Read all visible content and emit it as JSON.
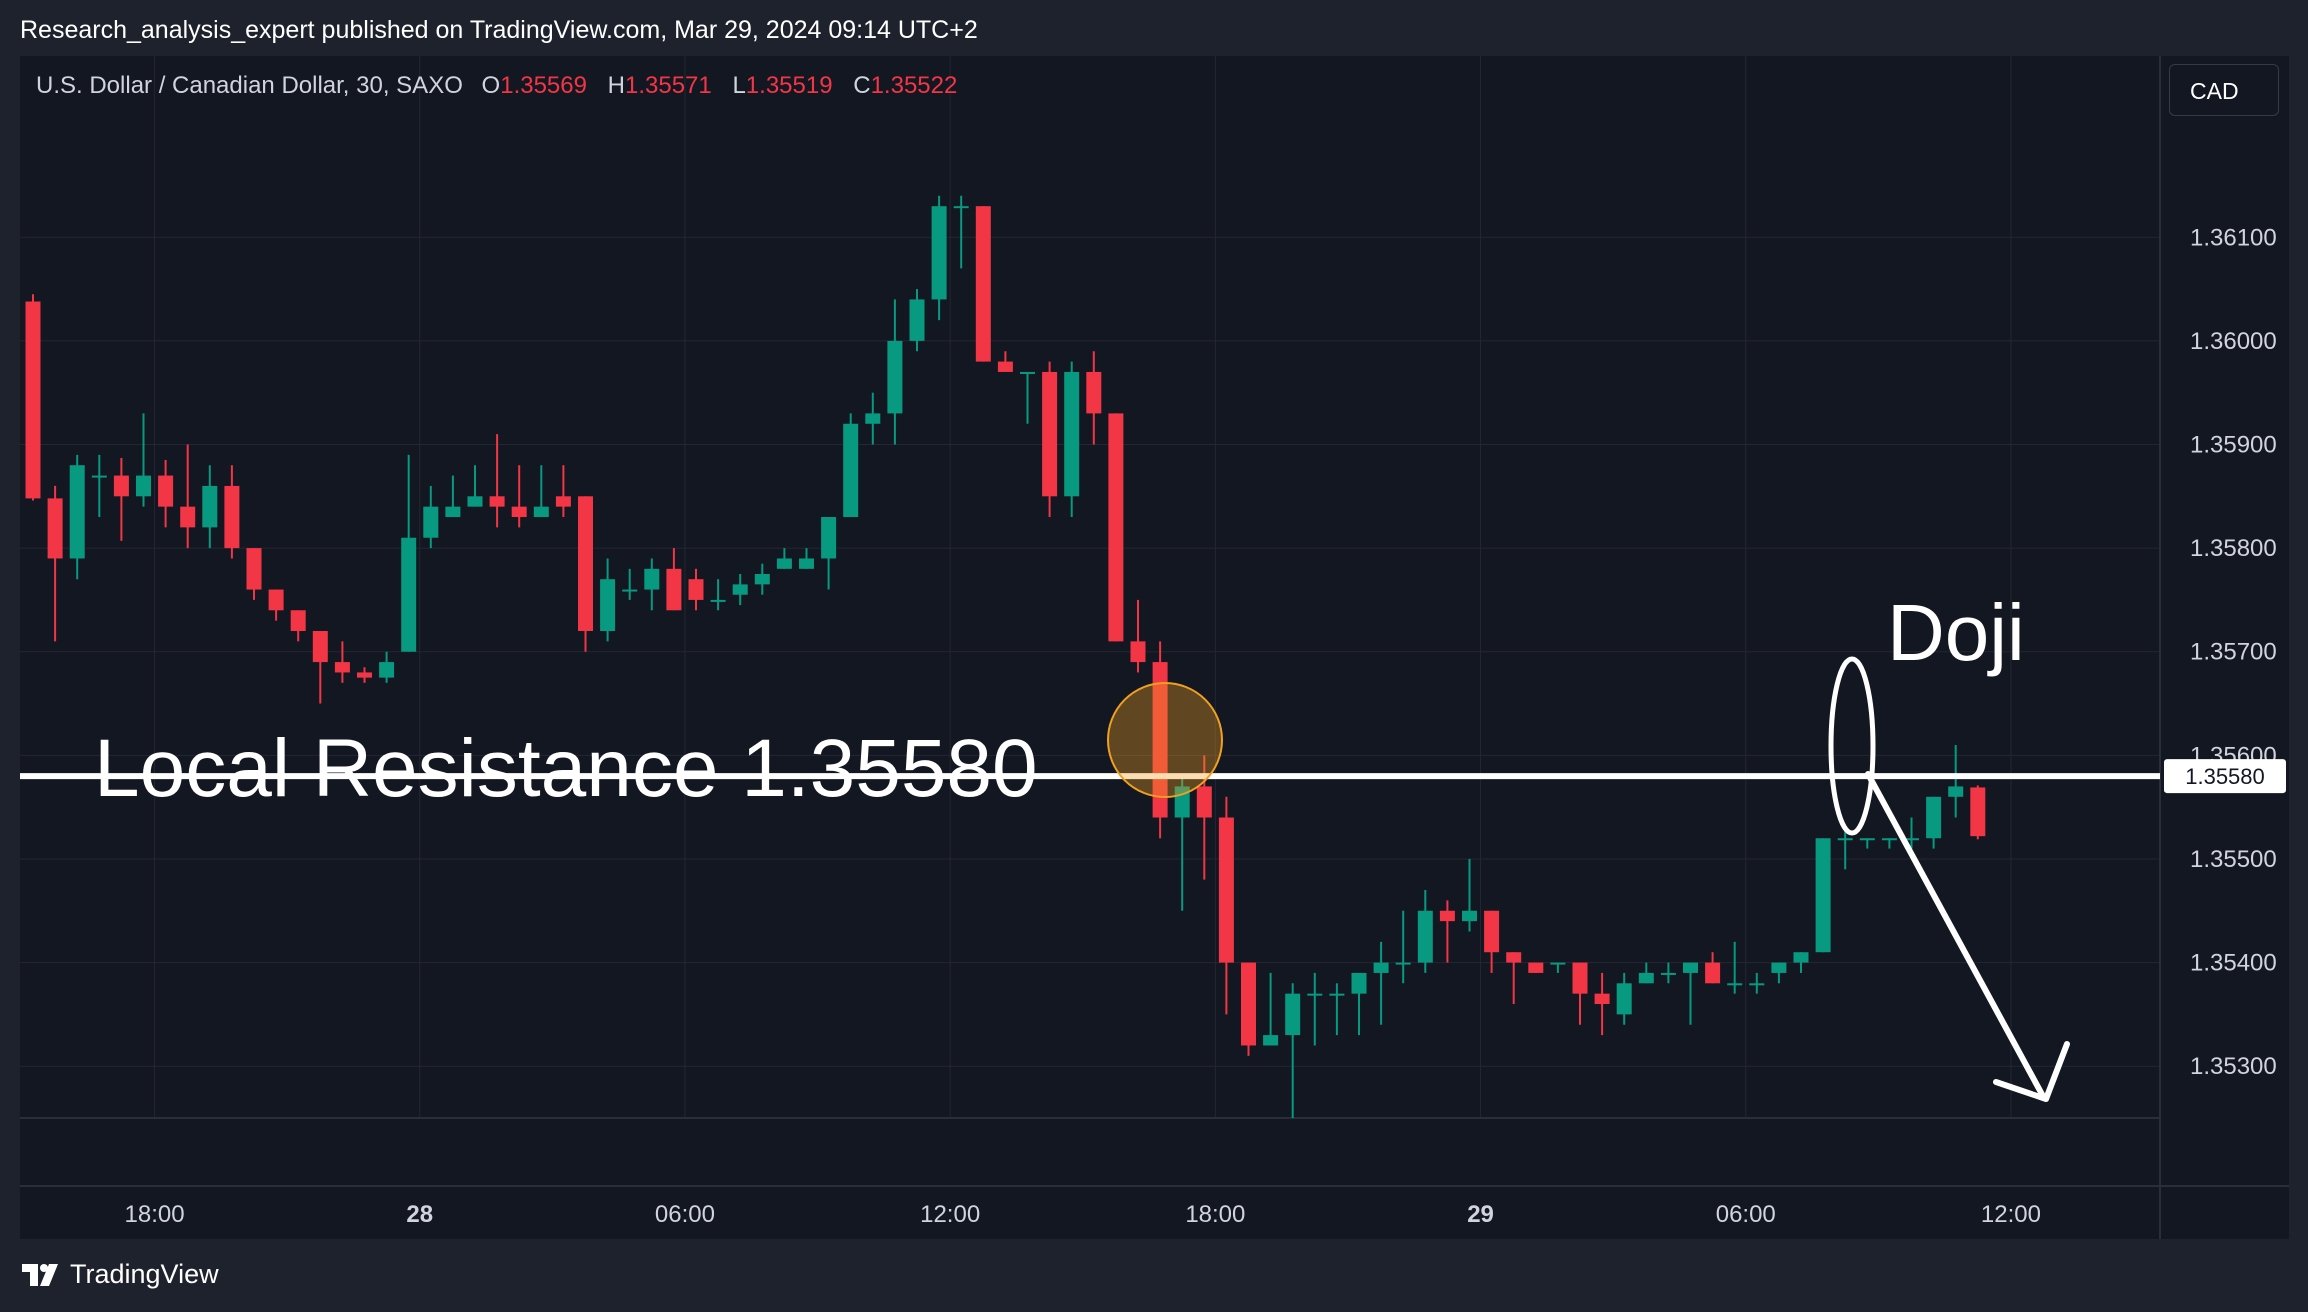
{
  "header": {
    "published": "Research_analysis_expert published on TradingView.com, Mar 29, 2024 09:14 UTC+2"
  },
  "symbol": {
    "name": "U.S. Dollar / Canadian Dollar, 30, SAXO",
    "o_label": "O",
    "o_value": "1.35569",
    "h_label": "H",
    "h_value": "1.35571",
    "l_label": "L",
    "l_value": "1.35519",
    "c_label": "C",
    "c_value": "1.35522"
  },
  "currency_button": "CAD",
  "annotations": {
    "resistance_label": "Local Resistance 1.35580",
    "doji_label": "Doji",
    "resistance_price_tag": "1.35580"
  },
  "footer": {
    "brand": "TradingView"
  },
  "colors": {
    "up": "#089981",
    "down": "#f23645",
    "background": "#131722",
    "grid": "#242733",
    "text": "#d1d4dc",
    "marker": "#f0a020"
  },
  "chart_data": {
    "type": "candlestick",
    "title": "U.S. Dollar / Canadian Dollar, 30, SAXO",
    "ylim": [
      1.3525,
      1.3619
    ],
    "y_ticks": [
      "1.36100",
      "1.36000",
      "1.35900",
      "1.35800",
      "1.35700",
      "1.35600",
      "1.35500",
      "1.35400",
      "1.35300"
    ],
    "x_ticks": [
      {
        "label": "18:00",
        "bold": false,
        "index": 5.5
      },
      {
        "label": "28",
        "bold": true,
        "index": 17.5
      },
      {
        "label": "06:00",
        "bold": false,
        "index": 29.5
      },
      {
        "label": "12:00",
        "bold": false,
        "index": 41.5
      },
      {
        "label": "18:00",
        "bold": false,
        "index": 53.5
      },
      {
        "label": "29",
        "bold": true,
        "index": 65.5
      },
      {
        "label": "06:00",
        "bold": false,
        "index": 77.5
      },
      {
        "label": "12:00",
        "bold": false,
        "index": 89.5
      }
    ],
    "resistance_level": 1.3558,
    "candles": [
      [
        1.36038,
        1.36045,
        1.35846,
        1.35848
      ],
      [
        1.35848,
        1.3586,
        1.3571,
        1.3579
      ],
      [
        1.3579,
        1.3589,
        1.3577,
        1.3588
      ],
      [
        1.3587,
        1.3589,
        1.3583,
        1.3587
      ],
      [
        1.3587,
        1.35887,
        1.35807,
        1.3585
      ],
      [
        1.3585,
        1.3593,
        1.3584,
        1.3587
      ],
      [
        1.3587,
        1.35885,
        1.3582,
        1.3584
      ],
      [
        1.3584,
        1.359,
        1.358,
        1.3582
      ],
      [
        1.3582,
        1.3588,
        1.358,
        1.3586
      ],
      [
        1.3586,
        1.3588,
        1.3579,
        1.358
      ],
      [
        1.358,
        1.358,
        1.3575,
        1.3576
      ],
      [
        1.3576,
        1.3576,
        1.3573,
        1.3574
      ],
      [
        1.3574,
        1.3574,
        1.3571,
        1.3572
      ],
      [
        1.3572,
        1.3572,
        1.3565,
        1.3569
      ],
      [
        1.3569,
        1.3571,
        1.3567,
        1.3568
      ],
      [
        1.3568,
        1.35685,
        1.3567,
        1.35675
      ],
      [
        1.35675,
        1.357,
        1.3567,
        1.3569
      ],
      [
        1.357,
        1.3589,
        1.357,
        1.3581
      ],
      [
        1.3581,
        1.3586,
        1.358,
        1.3584
      ],
      [
        1.3583,
        1.3587,
        1.3583,
        1.3584
      ],
      [
        1.3584,
        1.3588,
        1.3584,
        1.3585
      ],
      [
        1.3585,
        1.3591,
        1.3582,
        1.3584
      ],
      [
        1.3584,
        1.3588,
        1.3582,
        1.3583
      ],
      [
        1.3583,
        1.3588,
        1.3583,
        1.3584
      ],
      [
        1.3585,
        1.3588,
        1.3583,
        1.3584
      ],
      [
        1.3585,
        1.3585,
        1.357,
        1.3572
      ],
      [
        1.3572,
        1.3579,
        1.3571,
        1.3577
      ],
      [
        1.3576,
        1.3578,
        1.3575,
        1.3576
      ],
      [
        1.3576,
        1.3579,
        1.3574,
        1.3578
      ],
      [
        1.3578,
        1.358,
        1.3574,
        1.3574
      ],
      [
        1.3577,
        1.3578,
        1.3574,
        1.3575
      ],
      [
        1.3575,
        1.3577,
        1.3574,
        1.3575
      ],
      [
        1.35755,
        1.35775,
        1.35745,
        1.35765
      ],
      [
        1.35765,
        1.35785,
        1.35755,
        1.35775
      ],
      [
        1.3578,
        1.358,
        1.3578,
        1.3579
      ],
      [
        1.3578,
        1.358,
        1.3578,
        1.3579
      ],
      [
        1.3579,
        1.3583,
        1.3576,
        1.3583
      ],
      [
        1.3583,
        1.3593,
        1.3583,
        1.3592
      ],
      [
        1.3592,
        1.3595,
        1.359,
        1.3593
      ],
      [
        1.3593,
        1.3604,
        1.359,
        1.36
      ],
      [
        1.36,
        1.3605,
        1.3599,
        1.3604
      ],
      [
        1.3604,
        1.3614,
        1.3602,
        1.3613
      ],
      [
        1.3613,
        1.3614,
        1.3607,
        1.3613
      ],
      [
        1.3613,
        1.3613,
        1.3598,
        1.3598
      ],
      [
        1.3598,
        1.3599,
        1.3597,
        1.3597
      ],
      [
        1.3597,
        1.3597,
        1.3592,
        1.3597
      ],
      [
        1.3597,
        1.3598,
        1.3583,
        1.3585
      ],
      [
        1.3585,
        1.3598,
        1.3583,
        1.3597
      ],
      [
        1.3597,
        1.3599,
        1.359,
        1.3593
      ],
      [
        1.3593,
        1.3593,
        1.3571,
        1.3571
      ],
      [
        1.3571,
        1.3575,
        1.3568,
        1.3569
      ],
      [
        1.3569,
        1.3571,
        1.3552,
        1.3554
      ],
      [
        1.3554,
        1.3558,
        1.3545,
        1.3557
      ],
      [
        1.3557,
        1.356,
        1.3548,
        1.3554
      ],
      [
        1.3554,
        1.3556,
        1.3535,
        1.354
      ],
      [
        1.354,
        1.354,
        1.3531,
        1.3532
      ],
      [
        1.3532,
        1.3539,
        1.3532,
        1.3533
      ],
      [
        1.3533,
        1.3538,
        1.3525,
        1.3537
      ],
      [
        1.3537,
        1.3539,
        1.3532,
        1.3537
      ],
      [
        1.3537,
        1.3538,
        1.3533,
        1.3537
      ],
      [
        1.3537,
        1.3539,
        1.3533,
        1.3539
      ],
      [
        1.3539,
        1.3542,
        1.3534,
        1.354
      ],
      [
        1.354,
        1.3545,
        1.3538,
        1.354
      ],
      [
        1.354,
        1.3547,
        1.3539,
        1.3545
      ],
      [
        1.3545,
        1.3546,
        1.354,
        1.3544
      ],
      [
        1.3544,
        1.355,
        1.3543,
        1.3545
      ],
      [
        1.3545,
        1.3545,
        1.3539,
        1.3541
      ],
      [
        1.3541,
        1.3541,
        1.3536,
        1.354
      ],
      [
        1.354,
        1.354,
        1.3539,
        1.3539
      ],
      [
        1.354,
        1.354,
        1.3539,
        1.354
      ],
      [
        1.354,
        1.354,
        1.3534,
        1.3537
      ],
      [
        1.3537,
        1.3539,
        1.3533,
        1.3536
      ],
      [
        1.3535,
        1.3539,
        1.3534,
        1.3538
      ],
      [
        1.3538,
        1.354,
        1.3538,
        1.3539
      ],
      [
        1.3539,
        1.354,
        1.3538,
        1.3539
      ],
      [
        1.3539,
        1.354,
        1.3534,
        1.354
      ],
      [
        1.354,
        1.3541,
        1.3538,
        1.3538
      ],
      [
        1.3538,
        1.3542,
        1.3537,
        1.3538
      ],
      [
        1.3538,
        1.3539,
        1.3537,
        1.3538
      ],
      [
        1.3539,
        1.354,
        1.3538,
        1.354
      ],
      [
        1.354,
        1.3541,
        1.3539,
        1.3541
      ],
      [
        1.3541,
        1.3552,
        1.3541,
        1.3552
      ],
      [
        1.3552,
        1.3553,
        1.3549,
        1.3552
      ],
      [
        1.3552,
        1.3552,
        1.3551,
        1.3552
      ],
      [
        1.3552,
        1.3552,
        1.3551,
        1.3552
      ],
      [
        1.3552,
        1.3554,
        1.3551,
        1.3552
      ],
      [
        1.3552,
        1.3556,
        1.3551,
        1.3556
      ],
      [
        1.3556,
        1.3561,
        1.3554,
        1.3557
      ],
      [
        1.35569,
        1.35571,
        1.35519,
        1.35522
      ]
    ]
  }
}
